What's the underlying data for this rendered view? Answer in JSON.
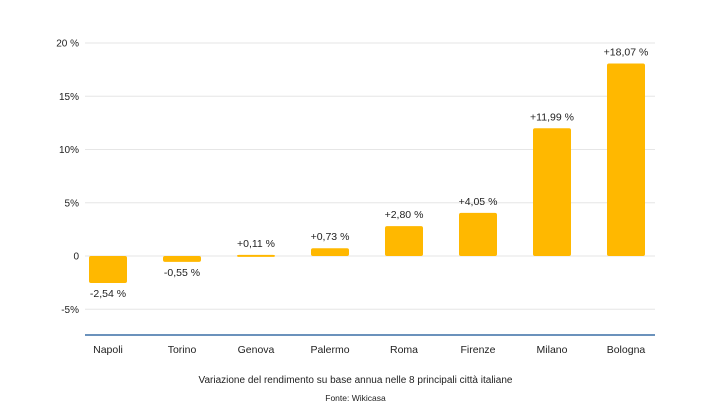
{
  "chart_data": {
    "type": "bar",
    "categories": [
      "Napoli",
      "Torino",
      "Genova",
      "Palermo",
      "Roma",
      "Firenze",
      "Milano",
      "Bologna"
    ],
    "values": [
      -2.54,
      -0.55,
      0.11,
      0.73,
      2.8,
      4.05,
      11.99,
      18.07
    ],
    "data_labels": [
      "-2,54 %",
      "-0,55 %",
      "+0,11 %",
      "+0,73 %",
      "+2,80 %",
      "+4,05 %",
      "+11,99 %",
      "+18,07 %"
    ],
    "ylim": [
      -7.5,
      20
    ],
    "yticks": [
      {
        "value": 20,
        "label": "20 %"
      },
      {
        "value": 15,
        "label": "15%"
      },
      {
        "value": 10,
        "label": "10%"
      },
      {
        "value": 5,
        "label": "5%"
      },
      {
        "value": 0,
        "label": "0"
      },
      {
        "value": -5,
        "label": "-5%"
      }
    ],
    "grid": true,
    "bar_color": "#FFB800",
    "axis_color": "#3A6EA5",
    "grid_color": "#E6E6E6",
    "text_color": "#222222"
  },
  "caption": {
    "title": "Variazione del rendimento su base annua nelle 8 principali città italiane",
    "source": "Fonte: Wikicasa"
  }
}
